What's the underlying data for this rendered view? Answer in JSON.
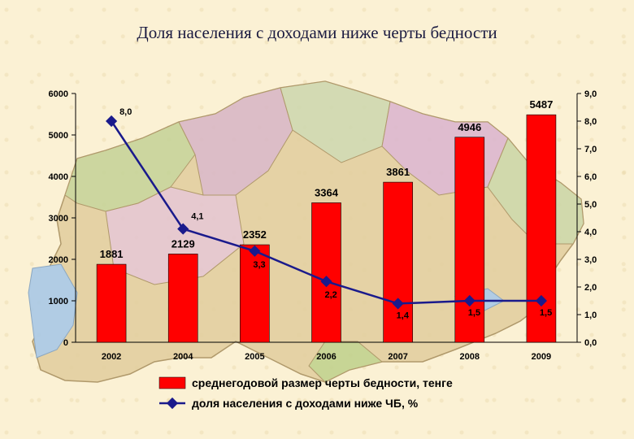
{
  "title": "Доля населения с доходами ниже черты бедности",
  "chart_data": {
    "type": "bar",
    "categories": [
      "2002",
      "2004",
      "2005",
      "2006",
      "2007",
      "2008",
      "2009"
    ],
    "series": [
      {
        "name": "среднегодовой размер черты бедности, тенге",
        "type": "bar",
        "axis": "left",
        "color": "#ff0000",
        "values": [
          1881,
          2129,
          2352,
          3364,
          3861,
          4946,
          5487
        ],
        "labels": [
          "1881",
          "2129",
          "2352",
          "3364",
          "3861",
          "4946",
          "5487"
        ]
      },
      {
        "name": "доля населения с доходами ниже ЧБ, %",
        "type": "line",
        "axis": "right",
        "color": "#1a1a8c",
        "values": [
          8.0,
          4.1,
          3.3,
          2.2,
          1.4,
          1.5,
          1.5
        ],
        "labels": [
          "8,0",
          "4,1",
          "3,3",
          "2,2",
          "1,4",
          "1,5",
          "1,5"
        ]
      }
    ],
    "left_axis": {
      "ylim": [
        0,
        6000
      ],
      "ticks": [
        "0",
        "1000",
        "2000",
        "3000",
        "4000",
        "5000",
        "6000"
      ]
    },
    "right_axis": {
      "ylim": [
        0,
        9
      ],
      "ticks": [
        "0,0",
        "1,0",
        "2,0",
        "3,0",
        "4,0",
        "5,0",
        "6,0",
        "7,0",
        "8,0",
        "9,0"
      ]
    },
    "legend_position": "bottom",
    "grid": false,
    "background": "map of Kazakhstan"
  }
}
